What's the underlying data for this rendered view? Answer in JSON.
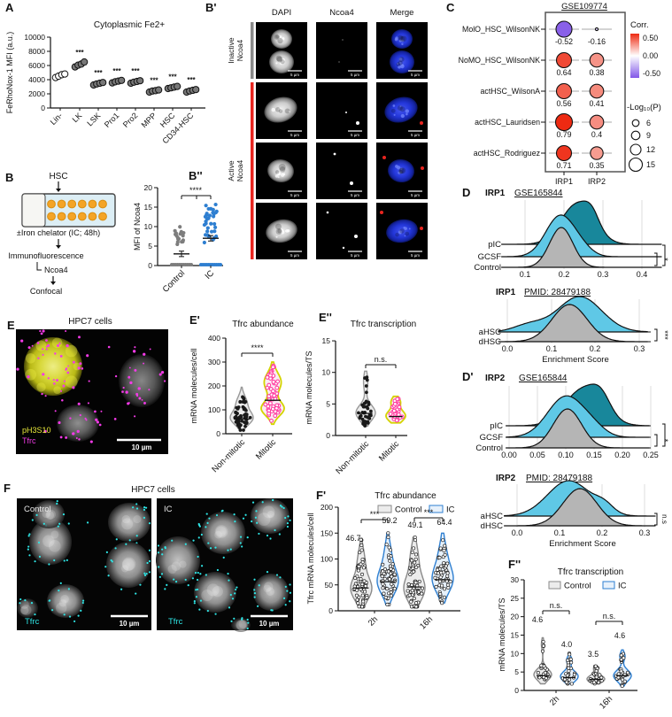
{
  "colors": {
    "teal": "#18879b",
    "lightblue": "#5fc8e6",
    "gray": "#b5b5b5",
    "blue": "#2e7fd1",
    "pink": "#ff3fa0",
    "violinyellow": "#d4d400",
    "cyan": "#2ee6e6",
    "magenta": "#f23ae6",
    "red": "#e8251f",
    "orange": "#f4a426",
    "corr_pos": "#ee2a12",
    "corr_neg": "#8257e8",
    "labelyellow": "#e8e83a"
  },
  "panels": {
    "A": {
      "label": "A",
      "title": "Cytoplasmic Fe2+",
      "ylabel": "FeRhoNox-1 MFI (a.u.)",
      "yticks": [
        0,
        2000,
        4000,
        6000,
        8000,
        10000
      ],
      "categories": [
        "Lin-",
        "LK",
        "LSK",
        "Pro1",
        "Pro2",
        "MPP",
        "HSC",
        "CD34-HSC"
      ],
      "sig": [
        "",
        "***",
        "***",
        "***",
        "***",
        "***",
        "***",
        "***"
      ],
      "open": [
        true,
        false,
        false,
        false,
        false,
        false,
        false,
        false
      ],
      "values": [
        [
          4300,
          4500,
          4700,
          4800
        ],
        [
          5800,
          6050,
          6200,
          6500
        ],
        [
          3250,
          3400,
          3500,
          3600
        ],
        [
          3550,
          3700,
          3800,
          3900
        ],
        [
          3500,
          3650,
          3750,
          3850
        ],
        [
          2250,
          2400,
          2450,
          2550
        ],
        [
          2750,
          2850,
          2950,
          3050
        ],
        [
          2250,
          2400,
          2500,
          2600
        ]
      ]
    },
    "B": {
      "label": "B",
      "top": "HSC",
      "chelator": "±Iron chelator (IC; 48h)",
      "step2": "Immunofluorescence",
      "stain": "Ncoa4",
      "step3": "Confocal"
    },
    "Bp": {
      "label": "B'",
      "cols": [
        "DAPI",
        "Ncoa4",
        "Merge"
      ],
      "row_groups": [
        [
          "Inactive",
          "Ncoa4"
        ],
        [
          "Active",
          "Ncoa4"
        ]
      ],
      "scalebar": "5 µm"
    },
    "Bpp": {
      "label": "B''",
      "ylabel": "MFI of Ncoa4",
      "yticks": [
        0,
        5,
        10,
        15,
        20
      ],
      "groups": [
        "Control",
        "IC"
      ],
      "sig": "****",
      "means": [
        3,
        7
      ]
    },
    "C": {
      "label": "C",
      "title": "GSE109774",
      "cols": [
        "IRP1",
        "IRP2"
      ],
      "rows": [
        "MolO_HSC_WilsonNK",
        "NoMO_HSC_WilsonNK",
        "actHSC_WilsonA",
        "actHSC_Lauridsen",
        "actHSC_Rodriguez"
      ],
      "corr": [
        [
          "-0.52",
          "-0.16"
        ],
        [
          "0.64",
          "0.38"
        ],
        [
          "0.56",
          "0.41"
        ],
        [
          "0.79",
          "0.4"
        ],
        [
          "0.71",
          "0.35"
        ]
      ],
      "radii": [
        [
          9,
          1.6
        ],
        [
          8.5,
          7.8
        ],
        [
          8.5,
          7.8
        ],
        [
          9.5,
          7.8
        ],
        [
          8.5,
          7.2
        ]
      ],
      "legend": {
        "corr_title": "Corr.",
        "corr_ticks": [
          "0.50",
          "0.00",
          "-0.50"
        ],
        "p_title": "-Log₁₀(P)",
        "p_ticks": [
          "6",
          "9",
          "12",
          "15"
        ]
      }
    },
    "D1": {
      "panel_label": "D",
      "gene": "IRP1",
      "src": "GSE165844",
      "xticks": [
        "0.1",
        "0.2",
        "0.3",
        "0.4"
      ],
      "sig": [
        "*",
        "****"
      ],
      "curves": [
        {
          "name": "pIC",
          "color": "teal",
          "mu": 0.235,
          "sd": 0.042,
          "amp": 46,
          "bump": [
            0.272,
            12,
            0.018
          ]
        },
        {
          "name": "GCSF",
          "color": "lightblue",
          "mu": 0.19,
          "sd": 0.037,
          "amp": 46,
          "bump": [
            0.245,
            7,
            0.028
          ]
        },
        {
          "name": "Control",
          "color": "gray",
          "mu": 0.193,
          "sd": 0.03,
          "amp": 45
        }
      ]
    },
    "D2": {
      "gene": "IRP1",
      "src": "PMID: 28479188",
      "xticks": [
        "0.0",
        "0.1",
        "0.2",
        "0.3"
      ],
      "xlabel": "Enrichment Score",
      "sig": [
        "***"
      ],
      "curves": [
        {
          "name": "aHSC",
          "color": "lightblue",
          "mu": 0.165,
          "sd": 0.05,
          "amp": 40,
          "bump": [
            0.05,
            8,
            0.035
          ]
        },
        {
          "name": "dHSC",
          "color": "gray",
          "mu": 0.142,
          "sd": 0.04,
          "amp": 42
        }
      ]
    },
    "Dp1": {
      "panel_label": "D'",
      "gene": "IRP2",
      "src": "GSE165844",
      "xticks": [
        "0.00",
        "0.05",
        "0.10",
        "0.15",
        "0.20",
        "0.25"
      ],
      "sig": [
        "*",
        "****"
      ],
      "curves": [
        {
          "name": "pIC",
          "color": "teal",
          "mu": 0.132,
          "sd": 0.033,
          "amp": 42,
          "bump": [
            0.163,
            15,
            0.016
          ]
        },
        {
          "name": "GCSF",
          "color": "lightblue",
          "mu": 0.1,
          "sd": 0.032,
          "amp": 46,
          "bump": [
            0.148,
            8,
            0.022
          ]
        },
        {
          "name": "Control",
          "color": "gray",
          "mu": 0.103,
          "sd": 0.025,
          "amp": 44
        }
      ]
    },
    "Dp2": {
      "gene": "IRP2",
      "src": "PMID: 28479188",
      "xticks": [
        "0.0",
        "0.1",
        "0.2",
        "0.3"
      ],
      "xlabel": "Enrichment Score",
      "sig": [
        "n.s"
      ],
      "curves": [
        {
          "name": "aHSC",
          "color": "lightblue",
          "mu": 0.122,
          "sd": 0.05,
          "amp": 40,
          "bump": [
            0.205,
            9,
            0.022
          ]
        },
        {
          "name": "dHSC",
          "color": "gray",
          "mu": 0.148,
          "sd": 0.04,
          "amp": 42
        }
      ]
    },
    "E": {
      "label": "E",
      "title": "HPC7 cells",
      "marker1": "pH3S10",
      "marker2": "Tfrc",
      "scalebar": "10 µm"
    },
    "Ep": {
      "label": "E'",
      "title": "Tfrc abundance",
      "ylabel": "mRNA molecules/cell",
      "yticks": [
        0,
        100,
        200,
        300,
        400
      ],
      "groups": [
        "Non-mitotic",
        "Mitotic"
      ],
      "sig": "****",
      "violins": [
        {
          "style": "gray",
          "mix": [
            [
              65,
              28,
              1
            ],
            [
              130,
              30,
              0.45
            ]
          ],
          "clip": [
            15,
            195
          ],
          "n": 55,
          "median": 62
        },
        {
          "style": "pink",
          "mix": [
            [
              105,
              30,
              1
            ],
            [
              215,
              40,
              0.75
            ]
          ],
          "clip": [
            40,
            300
          ],
          "n": 52,
          "median": 140
        }
      ]
    },
    "Epp": {
      "label": "E''",
      "title": "Tfrc transcription",
      "ylabel": "mRNA molecules/TS",
      "yticks": [
        0,
        5,
        10,
        15
      ],
      "groups": [
        "Non-mitotic",
        "Mitotic"
      ],
      "sig": "n.s.",
      "violins": [
        {
          "style": "gray",
          "mix": [
            [
              3.6,
              1.2,
              1
            ],
            [
              8.5,
              1.4,
              0.22
            ]
          ],
          "clip": [
            1.5,
            10.2
          ],
          "n": 40,
          "median": 3.5
        },
        {
          "style": "pink",
          "mix": [
            [
              3.1,
              0.9,
              1
            ],
            [
              5.4,
              0.7,
              0.45
            ]
          ],
          "clip": [
            2,
            6.2
          ],
          "n": 26,
          "median": 3
        }
      ]
    },
    "F": {
      "label": "F",
      "title": "HPC7 cells",
      "img_labels": [
        "Control",
        "IC"
      ],
      "marker": "Tfrc",
      "scalebar": "10 µm"
    },
    "Fp": {
      "label": "F'",
      "title": "Tfrc abundance",
      "legend": [
        "Control",
        "IC"
      ],
      "ylabel": "Tfrc mRNA molecules/cell",
      "yticks": [
        0,
        50,
        100,
        150,
        200
      ],
      "groups": [
        "2h",
        "16h"
      ],
      "means": [
        "46.7",
        "59.2",
        "49.1",
        "64.4"
      ],
      "sig": [
        "***",
        "***"
      ],
      "violins": [
        {
          "style": "control",
          "mix": [
            [
              42,
              22,
              1
            ],
            [
              95,
              25,
              0.35
            ]
          ],
          "clip": [
            8,
            140
          ],
          "n": 65,
          "median": 44
        },
        {
          "style": "ic",
          "mix": [
            [
              55,
              24,
              1
            ],
            [
              105,
              28,
              0.35
            ]
          ],
          "clip": [
            12,
            150
          ],
          "n": 65,
          "median": 56
        },
        {
          "style": "control",
          "mix": [
            [
              42,
              24,
              1
            ],
            [
              100,
              28,
              0.4
            ]
          ],
          "clip": [
            8,
            142
          ],
          "n": 65,
          "median": 46
        },
        {
          "style": "ic",
          "mix": [
            [
              60,
              25,
              1
            ],
            [
              110,
              26,
              0.35
            ]
          ],
          "clip": [
            15,
            150
          ],
          "n": 65,
          "median": 60
        }
      ]
    },
    "Fpp": {
      "label": "F''",
      "title": "Tfrc transcription",
      "legend": [
        "Control",
        "IC"
      ],
      "ylabel": "mRNA molecules/TS",
      "yticks": [
        0,
        5,
        10,
        15,
        20,
        25,
        30
      ],
      "groups": [
        "2h",
        "16h"
      ],
      "means": [
        "4.6",
        "4.0",
        "3.5",
        "4.6"
      ],
      "sig": [
        "n.s.",
        "n.s."
      ],
      "violins": [
        {
          "style": "control",
          "mix": [
            [
              4.3,
              1.5,
              1
            ],
            [
              12.5,
              1.3,
              0.15
            ]
          ],
          "clip": [
            1.8,
            14.3
          ],
          "n": 30,
          "median": 4
        },
        {
          "style": "ic",
          "mix": [
            [
              3.8,
              1.4,
              1
            ],
            [
              8.2,
              1,
              0.3
            ]
          ],
          "clip": [
            1.8,
            10.3
          ],
          "n": 30,
          "median": 3.5
        },
        {
          "style": "control",
          "mix": [
            [
              3.1,
              1,
              1
            ],
            [
              6,
              0.7,
              0.25
            ]
          ],
          "clip": [
            1.8,
            6.8
          ],
          "n": 30,
          "median": 3
        },
        {
          "style": "ic",
          "mix": [
            [
              4,
              1.5,
              1
            ],
            [
              9.3,
              1.1,
              0.3
            ]
          ],
          "clip": [
            1.2,
            11
          ],
          "n": 30,
          "median": 4
        }
      ]
    }
  }
}
